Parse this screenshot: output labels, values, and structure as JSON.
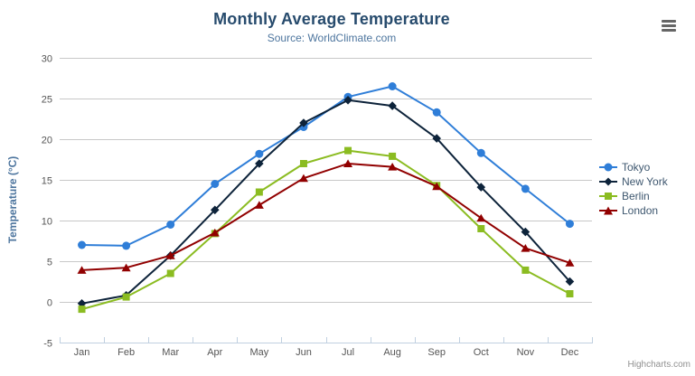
{
  "chart": {
    "title": "Monthly Average Temperature",
    "subtitle": "Source: WorldClimate.com",
    "y_axis_title": "Temperature (°C)",
    "credits": "Highcharts.com"
  },
  "chart_data": {
    "type": "line",
    "title": "Monthly Average Temperature",
    "subtitle": "Source: WorldClimate.com",
    "xlabel": "",
    "ylabel": "Temperature (°C)",
    "ylim": [
      -5,
      30
    ],
    "y_ticks": [
      -5,
      0,
      5,
      10,
      15,
      20,
      25,
      30
    ],
    "grid": true,
    "legend_position": "right",
    "categories": [
      "Jan",
      "Feb",
      "Mar",
      "Apr",
      "May",
      "Jun",
      "Jul",
      "Aug",
      "Sep",
      "Oct",
      "Nov",
      "Dec"
    ],
    "series": [
      {
        "name": "Tokyo",
        "marker": "circle",
        "color": "#2f7ed8",
        "values": [
          7.0,
          6.9,
          9.5,
          14.5,
          18.2,
          21.5,
          25.2,
          26.5,
          23.3,
          18.3,
          13.9,
          9.6
        ]
      },
      {
        "name": "New York",
        "marker": "diamond",
        "color": "#0d233a",
        "values": [
          -0.2,
          0.8,
          5.7,
          11.3,
          17.0,
          22.0,
          24.8,
          24.1,
          20.1,
          14.1,
          8.6,
          2.5
        ]
      },
      {
        "name": "Berlin",
        "marker": "square",
        "color": "#8bbc21",
        "values": [
          -0.9,
          0.6,
          3.5,
          8.4,
          13.5,
          17.0,
          18.6,
          17.9,
          14.3,
          9.0,
          3.9,
          1.0
        ]
      },
      {
        "name": "London",
        "marker": "triangle",
        "color": "#910000",
        "values": [
          3.9,
          4.2,
          5.7,
          8.5,
          11.9,
          15.2,
          17.0,
          16.6,
          14.2,
          10.3,
          6.6,
          4.8
        ]
      }
    ],
    "colors": {
      "background": "#ffffff",
      "grid": "#c8c8c8",
      "axis_line": "#C0D0E0",
      "tick": "#C0D0E0",
      "axis_label": "#555555",
      "title": "#274b6d",
      "subtitle": "#4d759e",
      "axis_title": "#4d759e",
      "legend_text": "#3E576F",
      "credits": "#909090",
      "menu_icon": "#666666"
    }
  }
}
